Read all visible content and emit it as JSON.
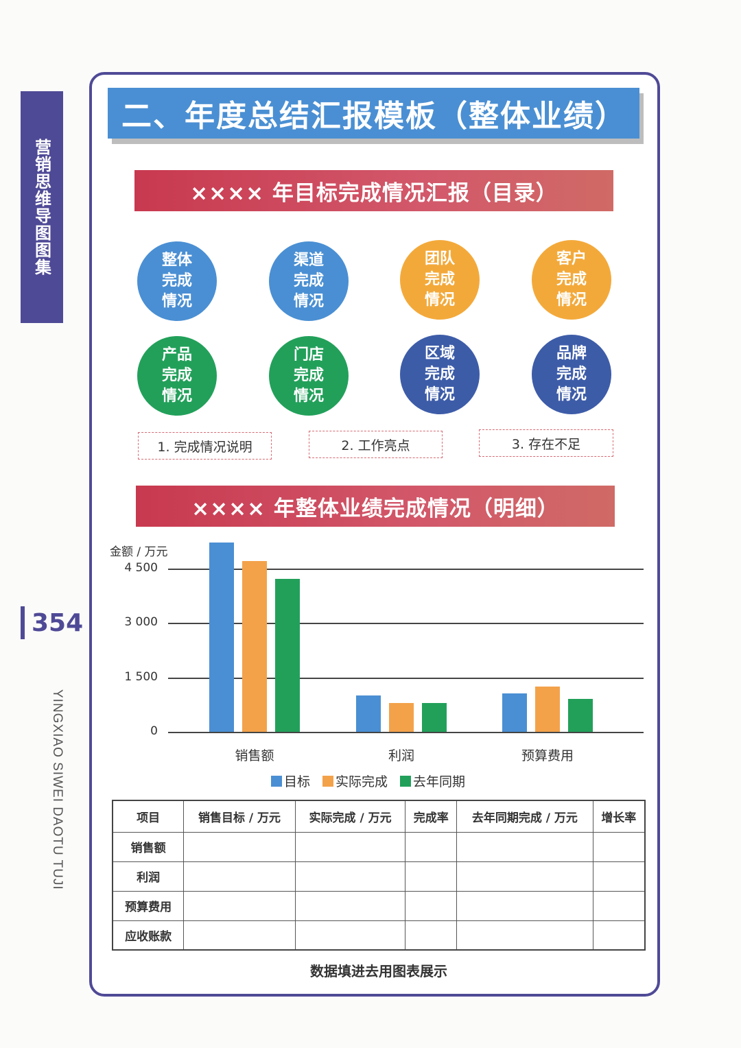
{
  "side": {
    "book_title": "营销思维导图图集",
    "page_number": "354",
    "pinyin": "YINGXIAO SIWEI DAOTU TUJI",
    "accent_color": "#4f4a96"
  },
  "header": {
    "title": "二、年度总结汇报模板（整体业绩）"
  },
  "toc": {
    "banner": "×××× 年目标完成情况汇报（目录）",
    "circles": [
      {
        "label": "整体完成情况",
        "color": "#4a8fd3"
      },
      {
        "label": "渠道完成情况",
        "color": "#4a8fd3"
      },
      {
        "label": "团队完成情况",
        "color": "#f3a93a"
      },
      {
        "label": "客户完成情况",
        "color": "#f3a93a"
      },
      {
        "label": "产品完成情况",
        "color": "#22a05a"
      },
      {
        "label": "门店完成情况",
        "color": "#22a05a"
      },
      {
        "label": "区域完成情况",
        "color": "#3d5ca8"
      },
      {
        "label": "品牌完成情况",
        "color": "#3d5ca8"
      }
    ],
    "points": [
      "1. 完成情况说明",
      "2. 工作亮点",
      "3. 存在不足"
    ]
  },
  "detail": {
    "banner": "×××× 年整体业绩完成情况（明细）"
  },
  "chart_data": {
    "type": "bar",
    "title": "×××× 年整体业绩完成情况（明细）",
    "xlabel": "",
    "ylabel": "金额 / 万元",
    "yticks": [
      "0",
      "1 500",
      "3 000",
      "4 500"
    ],
    "ylim": [
      0,
      5200
    ],
    "grid": true,
    "legend_position": "bottom",
    "categories": [
      "销售额",
      "利润",
      "预算费用"
    ],
    "series": [
      {
        "name": "目标",
        "color": "#4a8fd3",
        "values": [
          5200,
          1000,
          1050
        ]
      },
      {
        "name": "实际完成",
        "color": "#f3a24a",
        "values": [
          4700,
          800,
          1250
        ]
      },
      {
        "name": "去年同期",
        "color": "#22a05a",
        "values": [
          4200,
          800,
          900
        ]
      }
    ]
  },
  "table": {
    "headers": [
      "项目",
      "销售目标 / 万元",
      "实际完成 / 万元",
      "完成率",
      "去年同期完成 / 万元",
      "增长率"
    ],
    "rows": [
      [
        "销售额",
        "",
        "",
        "",
        "",
        ""
      ],
      [
        "利润",
        "",
        "",
        "",
        "",
        ""
      ],
      [
        "预算费用",
        "",
        "",
        "",
        "",
        ""
      ],
      [
        "应收账款",
        "",
        "",
        "",
        "",
        ""
      ]
    ]
  },
  "footnote": "数据填进去用图表展示"
}
